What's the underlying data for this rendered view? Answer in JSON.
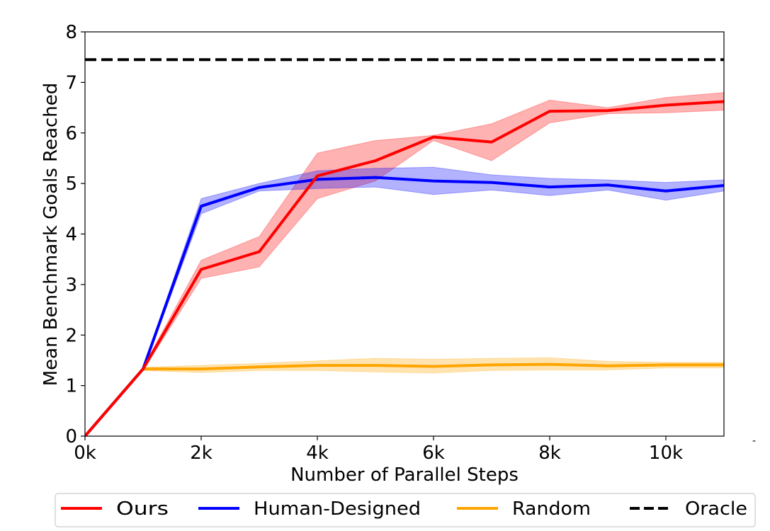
{
  "chart_data": {
    "type": "line",
    "title": "",
    "xlabel": "Number of Parallel Steps",
    "ylabel": "Mean Benchmark Goals Reached",
    "x": [
      0,
      1000,
      2000,
      3000,
      4000,
      5000,
      6000,
      7000,
      8000,
      9000,
      10000,
      11000
    ],
    "xlim": [
      0,
      11000
    ],
    "ylim": [
      0,
      8
    ],
    "xticks": [
      0,
      2000,
      4000,
      6000,
      8000,
      10000
    ],
    "xtick_labels": [
      "0k",
      "2k",
      "4k",
      "6k",
      "8k",
      "10k"
    ],
    "yticks": [
      0,
      1,
      2,
      3,
      4,
      5,
      6,
      7,
      8
    ],
    "ytick_labels": [
      "0",
      "1",
      "2",
      "3",
      "4",
      "5",
      "6",
      "7",
      "8"
    ],
    "grid": false,
    "legend_position": "bottom",
    "series": [
      {
        "name": "Ours",
        "color": "#ff0000",
        "values": [
          0,
          1.33,
          3.3,
          3.65,
          5.15,
          5.45,
          5.92,
          5.82,
          6.43,
          6.44,
          6.55,
          6.62
        ],
        "lower": [
          0,
          1.3,
          3.12,
          3.35,
          4.7,
          5.05,
          5.85,
          5.45,
          6.2,
          6.38,
          6.4,
          6.45
        ],
        "upper": [
          0,
          1.36,
          3.48,
          3.95,
          5.6,
          5.85,
          5.95,
          6.18,
          6.65,
          6.5,
          6.7,
          6.8
        ]
      },
      {
        "name": "Human-Designed",
        "color": "#0000ff",
        "values": [
          0,
          1.33,
          4.55,
          4.92,
          5.08,
          5.12,
          5.05,
          5.02,
          4.93,
          4.97,
          4.85,
          4.96
        ],
        "lower": [
          0,
          1.3,
          4.4,
          4.85,
          4.9,
          4.93,
          4.78,
          4.87,
          4.76,
          4.87,
          4.67,
          4.85
        ],
        "upper": [
          0,
          1.36,
          4.7,
          5.0,
          5.25,
          5.3,
          5.32,
          5.17,
          5.1,
          5.07,
          5.02,
          5.07
        ]
      },
      {
        "name": "Random",
        "color": "#ffa500",
        "values": [
          0,
          1.33,
          1.33,
          1.37,
          1.4,
          1.4,
          1.38,
          1.41,
          1.42,
          1.39,
          1.41,
          1.41
        ],
        "lower": [
          0,
          1.3,
          1.26,
          1.3,
          1.3,
          1.27,
          1.25,
          1.3,
          1.31,
          1.31,
          1.35,
          1.35
        ],
        "upper": [
          0,
          1.36,
          1.4,
          1.44,
          1.49,
          1.54,
          1.52,
          1.54,
          1.55,
          1.48,
          1.46,
          1.46
        ]
      },
      {
        "name": "Oracle",
        "color": "#000000",
        "dashed": true,
        "values": [
          7.45,
          7.45,
          7.45,
          7.45,
          7.45,
          7.45,
          7.45,
          7.45,
          7.45,
          7.45,
          7.45,
          7.45
        ]
      }
    ]
  }
}
